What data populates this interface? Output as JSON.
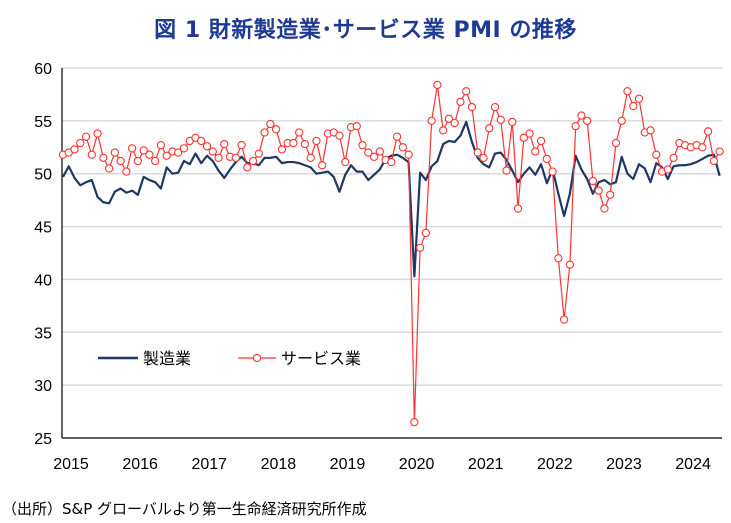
{
  "chart_data": {
    "type": "line",
    "title": "図 1  財新製造業･サービス業 PMI の推移",
    "source": "（出所）S&P グローバルより第一生命経済研究所作成",
    "xlabel": "",
    "ylabel": "",
    "ylim": [
      25,
      60
    ],
    "yticks": [
      25,
      30,
      35,
      40,
      45,
      50,
      55,
      60
    ],
    "xtick_labels": [
      "2015",
      "2016",
      "2017",
      "2018",
      "2019",
      "2020",
      "2021",
      "2022",
      "2023",
      "2024"
    ],
    "x_start": "2015-01",
    "x_end": "2024-07",
    "frequency": "monthly",
    "grid": true,
    "legend_position": "lower-left",
    "colors": {
      "manufacturing": "#1f3864",
      "services": "#ff3333"
    },
    "series": [
      {
        "name": "製造業",
        "values": [
          49.7,
          50.7,
          49.6,
          48.9,
          49.2,
          49.4,
          47.8,
          47.3,
          47.2,
          48.3,
          48.6,
          48.2,
          48.4,
          48.0,
          49.7,
          49.4,
          49.2,
          48.6,
          50.6,
          50.0,
          50.1,
          51.2,
          50.9,
          51.9,
          51.0,
          51.7,
          51.2,
          50.3,
          49.6,
          50.4,
          51.1,
          51.6,
          51.0,
          51.0,
          50.8,
          51.5,
          51.5,
          51.6,
          51.0,
          51.1,
          51.1,
          51.0,
          50.8,
          50.6,
          50.0,
          50.1,
          50.2,
          49.7,
          48.3,
          49.9,
          50.8,
          50.2,
          50.2,
          49.4,
          49.9,
          50.4,
          51.4,
          51.7,
          51.8,
          51.5,
          51.1,
          40.3,
          50.1,
          49.4,
          50.7,
          51.2,
          52.8,
          53.1,
          53.0,
          53.6,
          54.9,
          53.0,
          51.5,
          50.9,
          50.6,
          51.9,
          52.0,
          51.3,
          50.3,
          49.2,
          50.0,
          50.6,
          49.9,
          50.9,
          49.1,
          50.4,
          48.1,
          46.0,
          48.1,
          51.7,
          50.4,
          49.5,
          48.1,
          49.2,
          49.4,
          49.0,
          49.2,
          51.6,
          50.0,
          49.5,
          50.9,
          50.5,
          49.2,
          51.0,
          50.6,
          49.5,
          50.7,
          50.8,
          50.8,
          50.9,
          51.1,
          51.4,
          51.7,
          51.8,
          49.8
        ]
      },
      {
        "name": "サービス業",
        "values": [
          51.8,
          52.0,
          52.3,
          52.9,
          53.5,
          51.8,
          53.8,
          51.5,
          50.5,
          52.0,
          51.2,
          50.2,
          52.4,
          51.2,
          52.2,
          51.8,
          51.2,
          52.7,
          51.7,
          52.1,
          52.0,
          52.4,
          53.1,
          53.4,
          53.1,
          52.6,
          52.1,
          51.5,
          52.8,
          51.6,
          51.5,
          52.7,
          50.6,
          51.2,
          51.9,
          53.9,
          54.7,
          54.2,
          52.3,
          52.9,
          52.9,
          53.9,
          52.8,
          51.5,
          53.1,
          50.8,
          53.8,
          53.9,
          53.6,
          51.1,
          54.4,
          54.5,
          52.7,
          52.0,
          51.6,
          52.1,
          51.3,
          51.1,
          53.5,
          52.5,
          51.8,
          26.5,
          43.0,
          44.4,
          55.0,
          58.4,
          54.1,
          55.2,
          54.8,
          56.8,
          57.8,
          56.3,
          52.0,
          51.5,
          54.3,
          56.3,
          55.1,
          50.3,
          54.9,
          46.7,
          53.4,
          53.8,
          52.1,
          53.1,
          51.4,
          50.2,
          42.0,
          36.2,
          41.4,
          54.5,
          55.5,
          55.0,
          49.3,
          48.4,
          46.7,
          48.0,
          52.9,
          55.0,
          57.8,
          56.4,
          57.1,
          53.9,
          54.1,
          51.8,
          50.2,
          50.4,
          51.5,
          52.9,
          52.7,
          52.5,
          52.7,
          52.5,
          54.0,
          51.2,
          52.1
        ]
      }
    ]
  }
}
